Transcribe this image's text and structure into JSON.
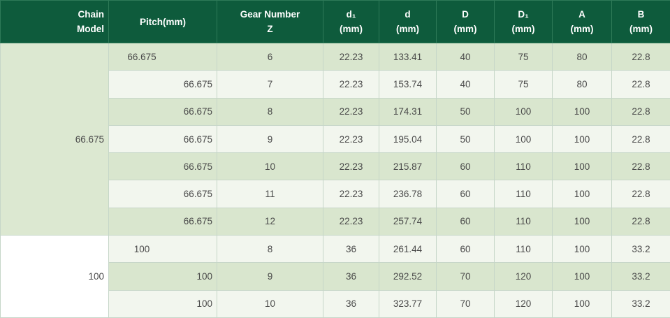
{
  "headers": {
    "chain_model": [
      "Chain",
      "Model"
    ],
    "pitch": "Pitch(mm)",
    "gear_number": [
      "Gear Number",
      "Z"
    ],
    "d1": [
      "d₁",
      "(mm)"
    ],
    "d": [
      "d",
      "(mm)"
    ],
    "D": [
      "D",
      "(mm)"
    ],
    "D1": [
      "D₁",
      "(mm)"
    ],
    "A": [
      "A",
      "(mm)"
    ],
    "B": [
      "B",
      "(mm)"
    ]
  },
  "groups": [
    {
      "chain_model": "66.675",
      "rows": [
        {
          "pitch": "66.675",
          "z": "6",
          "d1": "22.23",
          "d": "133.41",
          "D": "40",
          "D1": "75",
          "A": "80",
          "B": "22.8"
        },
        {
          "pitch": "66.675",
          "z": "7",
          "d1": "22.23",
          "d": "153.74",
          "D": "40",
          "D1": "75",
          "A": "80",
          "B": "22.8"
        },
        {
          "pitch": "66.675",
          "z": "8",
          "d1": "22.23",
          "d": "174.31",
          "D": "50",
          "D1": "100",
          "A": "100",
          "B": "22.8"
        },
        {
          "pitch": "66.675",
          "z": "9",
          "d1": "22.23",
          "d": "195.04",
          "D": "50",
          "D1": "100",
          "A": "100",
          "B": "22.8"
        },
        {
          "pitch": "66.675",
          "z": "10",
          "d1": "22.23",
          "d": "215.87",
          "D": "60",
          "D1": "110",
          "A": "100",
          "B": "22.8"
        },
        {
          "pitch": "66.675",
          "z": "11",
          "d1": "22.23",
          "d": "236.78",
          "D": "60",
          "D1": "110",
          "A": "100",
          "B": "22.8"
        },
        {
          "pitch": "66.675",
          "z": "12",
          "d1": "22.23",
          "d": "257.74",
          "D": "60",
          "D1": "110",
          "A": "100",
          "B": "22.8"
        }
      ]
    },
    {
      "chain_model": "100",
      "rows": [
        {
          "pitch": "100",
          "z": "8",
          "d1": "36",
          "d": "261.44",
          "D": "60",
          "D1": "110",
          "A": "100",
          "B": "33.2"
        },
        {
          "pitch": "100",
          "z": "9",
          "d1": "36",
          "d": "292.52",
          "D": "70",
          "D1": "120",
          "A": "100",
          "B": "33.2"
        },
        {
          "pitch": "100",
          "z": "10",
          "d1": "36",
          "d": "323.77",
          "D": "70",
          "D1": "120",
          "A": "100",
          "B": "33.2"
        }
      ]
    }
  ]
}
